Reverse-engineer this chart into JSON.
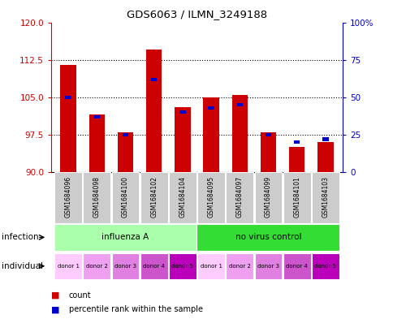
{
  "title": "GDS6063 / ILMN_3249188",
  "samples": [
    "GSM1684096",
    "GSM1684098",
    "GSM1684100",
    "GSM1684102",
    "GSM1684104",
    "GSM1684095",
    "GSM1684097",
    "GSM1684099",
    "GSM1684101",
    "GSM1684103"
  ],
  "count_values": [
    111.5,
    101.5,
    98.0,
    114.5,
    103.0,
    105.0,
    105.5,
    98.0,
    95.0,
    96.0
  ],
  "percentile_values": [
    50,
    37,
    25,
    62,
    40,
    43,
    45,
    25,
    20,
    22
  ],
  "ymin": 90,
  "ymax": 120,
  "yticks": [
    90,
    97.5,
    105,
    112.5,
    120
  ],
  "right_yticks": [
    0,
    25,
    50,
    75,
    100
  ],
  "infection_groups": [
    {
      "label": "influenza A",
      "start": 0,
      "end": 5,
      "color": "#aaffaa"
    },
    {
      "label": "no virus control",
      "start": 5,
      "end": 10,
      "color": "#33dd33"
    }
  ],
  "individual_labels": [
    "donor 1",
    "donor 2",
    "donor 3",
    "donor 4",
    "donor 5",
    "donor 1",
    "donor 2",
    "donor 3",
    "donor 4",
    "donor 5"
  ],
  "individual_colors": [
    "#ffccff",
    "#f0a0f0",
    "#e080e0",
    "#cc55cc",
    "#bb00bb",
    "#ffccff",
    "#f0a0f0",
    "#e080e0",
    "#cc55cc",
    "#bb00bb"
  ],
  "bar_color": "#cc0000",
  "blue_color": "#0000cc",
  "bar_width": 0.55,
  "tick_label_color": "#cc0000",
  "right_axis_color": "#0000cc",
  "sample_box_color": "#cccccc",
  "legend_square": "■"
}
